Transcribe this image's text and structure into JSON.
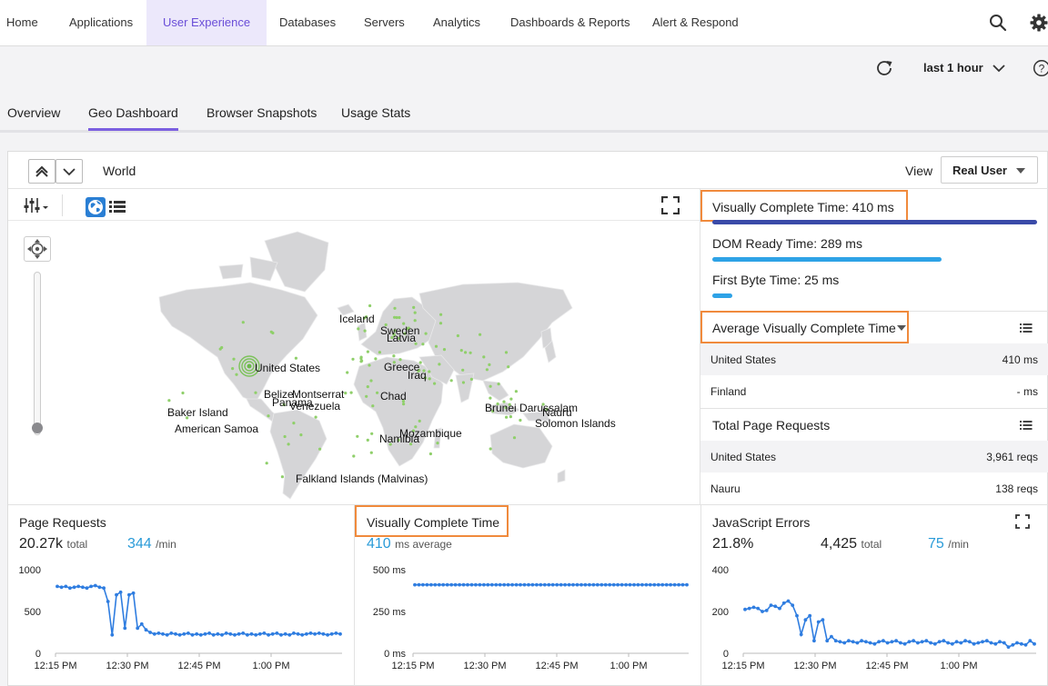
{
  "nav": {
    "items": [
      {
        "label": "Home",
        "x": 7
      },
      {
        "label": "Applications",
        "x": 76
      },
      {
        "label": "User Experience",
        "x": 179,
        "active": true
      },
      {
        "label": "Databases",
        "x": 307
      },
      {
        "label": "Servers",
        "x": 400
      },
      {
        "label": "Analytics",
        "x": 476
      },
      {
        "label": "Dashboards & Reports",
        "x": 561
      },
      {
        "label": "Alert & Respond",
        "x": 717
      }
    ]
  },
  "time_range": {
    "label": "last 1 hour"
  },
  "tabs": [
    {
      "label": "Overview"
    },
    {
      "label": "Geo Dashboard",
      "active": true
    },
    {
      "label": "Browser Snapshots"
    },
    {
      "label": "Usage Stats"
    }
  ],
  "panel": {
    "breadcrumb": "World",
    "view_label": "View",
    "view_value": "Real User"
  },
  "map": {
    "labels": [
      "Iceland",
      "Sweden",
      "Latvia",
      "United States",
      "Greece",
      "Iraq",
      "Belize",
      "Montserrat",
      "Panama",
      "Venezuela",
      "Chad",
      "Brunei Darussalam",
      "Nauru",
      "Baker Island",
      "Solomon Islands",
      "American Samoa",
      "Mozambique",
      "Namibia",
      "Falkland Islands (Malvinas)"
    ]
  },
  "metrics": {
    "visually_complete": "Visually Complete Time: 410 ms",
    "dom_ready": "DOM Ready Time: 289 ms",
    "first_byte": "First Byte Time: 25 ms",
    "bar_fractions": {
      "visually_complete": 1.0,
      "dom_ready": 0.705,
      "first_byte": 0.061
    },
    "colors": {
      "visually_complete": "#3a4aa8",
      "dom_ready": "#2ea2e6",
      "first_byte": "#2ea2e6"
    }
  },
  "avg_visually_complete": {
    "title": "Average Visually Complete Time",
    "rows": [
      {
        "name": "United States",
        "value": "410 ms"
      },
      {
        "name": "Finland",
        "value": "- ms"
      }
    ]
  },
  "total_page_requests": {
    "title": "Total Page Requests",
    "rows": [
      {
        "name": "United States",
        "value": "3,961 reqs"
      },
      {
        "name": "Nauru",
        "value": "138 reqs"
      }
    ]
  },
  "cards": {
    "page_requests": {
      "title": "Page Requests",
      "total": "20.27k",
      "total_unit": "total",
      "rate": "344",
      "rate_unit": "/min"
    },
    "visually_complete": {
      "title": "Visually Complete Time",
      "avg": "410",
      "avg_unit": "ms average"
    },
    "js_errors": {
      "title": "JavaScript Errors",
      "pct": "21.8%",
      "total": "4,425",
      "total_unit": "total",
      "rate": "75",
      "rate_unit": "/min"
    }
  },
  "chart_data": [
    {
      "type": "line",
      "title": "Page Requests",
      "ylim": [
        0,
        1000
      ],
      "yticks": [
        "1000",
        "500",
        "0"
      ],
      "xticks": [
        "12:15 PM",
        "12:30 PM",
        "12:45 PM",
        "1:00 PM"
      ],
      "series": [
        {
          "values": [
            800,
            790,
            800,
            780,
            790,
            800,
            790,
            780,
            800,
            810,
            790,
            780,
            620,
            220,
            700,
            730,
            300,
            700,
            720,
            300,
            350,
            280,
            250,
            230,
            240,
            230,
            220,
            240,
            230,
            220,
            230,
            240,
            220,
            230,
            220,
            230,
            240,
            220,
            230,
            220,
            240,
            230,
            220,
            230,
            240,
            220,
            230,
            220,
            230,
            240,
            220,
            230,
            240,
            220,
            230,
            220,
            240,
            230,
            220,
            230,
            240,
            230,
            240,
            230,
            220,
            230,
            240,
            230
          ]
        }
      ]
    },
    {
      "type": "line",
      "title": "Visually Complete Time",
      "ylim": [
        0,
        500
      ],
      "yticks": [
        "500 ms",
        "250 ms",
        "0 ms"
      ],
      "xticks": [
        "12:15 PM",
        "12:30 PM",
        "12:45 PM",
        "1:00 PM"
      ],
      "series": [
        {
          "values": [
            410,
            410,
            410,
            410,
            410,
            410,
            410,
            410,
            410,
            410,
            410,
            410,
            410,
            410,
            410,
            410,
            410,
            410,
            410,
            410,
            410,
            410,
            410,
            410,
            410,
            410,
            410,
            410,
            410,
            410,
            410,
            410,
            410,
            410,
            410,
            410,
            410,
            410,
            410,
            410,
            410,
            410,
            410,
            410,
            410,
            410,
            410,
            410,
            410,
            410,
            410,
            410,
            410,
            410,
            410,
            410,
            410,
            410,
            410,
            410,
            410,
            410,
            410,
            410,
            410,
            410,
            410,
            410
          ]
        }
      ]
    },
    {
      "type": "line",
      "title": "JavaScript Errors",
      "ylim": [
        0,
        400
      ],
      "yticks": [
        "400",
        "200",
        "0"
      ],
      "xticks": [
        "12:15 PM",
        "12:30 PM",
        "12:45 PM",
        "1:00 PM"
      ],
      "series": [
        {
          "values": [
            210,
            215,
            220,
            215,
            200,
            205,
            230,
            225,
            215,
            240,
            250,
            230,
            180,
            90,
            160,
            180,
            60,
            150,
            160,
            60,
            80,
            60,
            55,
            50,
            60,
            55,
            50,
            60,
            55,
            50,
            45,
            55,
            60,
            50,
            55,
            60,
            50,
            45,
            55,
            60,
            50,
            55,
            60,
            50,
            45,
            55,
            60,
            50,
            45,
            55,
            50,
            60,
            55,
            45,
            50,
            55,
            60,
            50,
            45,
            55,
            50,
            30,
            40,
            50,
            45,
            40,
            60,
            45
          ]
        }
      ]
    }
  ]
}
